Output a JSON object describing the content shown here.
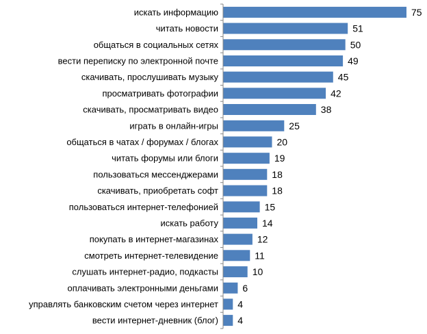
{
  "chart_data": {
    "type": "bar",
    "orientation": "horizontal",
    "categories": [
      "искать информацию",
      "читать новости",
      "общаться в социальных сетях",
      "вести переписку по электронной почте",
      "скачивать, прослушивать музыку",
      "просматривать фотографии",
      "скачивать, просматривать видео",
      "играть в онлайн-игры",
      "общаться в чатах / форумах / блогах",
      "читать форумы или блоги",
      "пользоваться мессенджерами",
      "скачивать, приобретать софт",
      "пользоваться интернет-телефонией",
      "искать работу",
      "покупать в интернет-магазинах",
      "смотреть интернет-телевидение",
      "слушать интернет-радио, подкасты",
      "оплачивать электронными деньгами",
      "управлять банковским счетом через интернет",
      "вести интернет-дневник (блог)"
    ],
    "values": [
      75,
      51,
      50,
      49,
      45,
      42,
      38,
      25,
      20,
      19,
      18,
      18,
      15,
      14,
      12,
      11,
      10,
      6,
      4,
      4
    ],
    "xlim": [
      0,
      75
    ],
    "grid": false,
    "legend": "none",
    "data_labels": true,
    "bar_color": "#4f81bd",
    "axis_color": "#868686"
  }
}
